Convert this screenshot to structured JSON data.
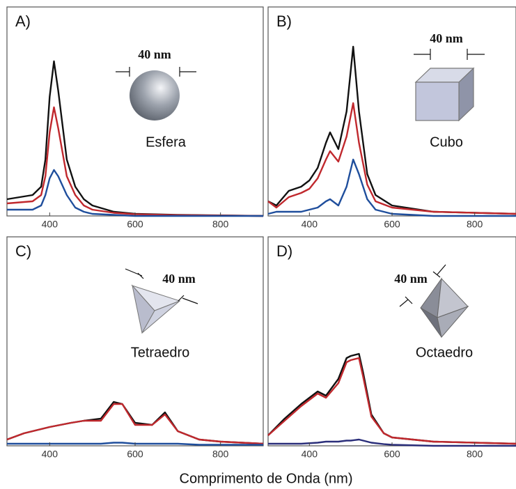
{
  "xlabel": "Comprimento de Onda (nm)",
  "chart_data": [
    {
      "type": "line",
      "title": "A)",
      "annotations": [
        "40 nm",
        "Esfera"
      ],
      "xlim": [
        300,
        900
      ],
      "xticks": [
        400,
        600,
        800
      ],
      "ylim": [
        0,
        1
      ],
      "x": [
        300,
        360,
        380,
        390,
        400,
        410,
        420,
        440,
        460,
        480,
        500,
        550,
        600,
        700,
        900
      ],
      "series": [
        {
          "color": "#111111",
          "values": [
            0.08,
            0.1,
            0.14,
            0.27,
            0.57,
            0.74,
            0.6,
            0.27,
            0.14,
            0.08,
            0.05,
            0.02,
            0.01,
            0.005,
            0
          ]
        },
        {
          "color": "#c0282d",
          "values": [
            0.06,
            0.07,
            0.1,
            0.19,
            0.4,
            0.52,
            0.42,
            0.19,
            0.1,
            0.05,
            0.03,
            0.015,
            0.008,
            0.004,
            0
          ]
        },
        {
          "color": "#1f4e9c",
          "values": [
            0.03,
            0.03,
            0.05,
            0.1,
            0.18,
            0.22,
            0.19,
            0.1,
            0.04,
            0.02,
            0.01,
            0.005,
            0,
            0,
            0
          ]
        }
      ]
    },
    {
      "type": "line",
      "title": "B)",
      "annotations": [
        "40 nm",
        "Cubo"
      ],
      "xlim": [
        300,
        900
      ],
      "xticks": [
        400,
        600,
        800
      ],
      "ylim": [
        0,
        1
      ],
      "x": [
        300,
        320,
        350,
        380,
        400,
        420,
        440,
        450,
        470,
        490,
        506,
        520,
        540,
        560,
        600,
        700,
        900
      ],
      "series": [
        {
          "color": "#111111",
          "values": [
            0.07,
            0.05,
            0.12,
            0.14,
            0.17,
            0.23,
            0.35,
            0.4,
            0.32,
            0.5,
            0.81,
            0.5,
            0.2,
            0.1,
            0.05,
            0.02,
            0.01
          ]
        },
        {
          "color": "#c0282d",
          "values": [
            0.07,
            0.04,
            0.09,
            0.11,
            0.13,
            0.18,
            0.27,
            0.31,
            0.26,
            0.38,
            0.54,
            0.35,
            0.15,
            0.07,
            0.04,
            0.02,
            0.01
          ]
        },
        {
          "color": "#1f4e9c",
          "values": [
            0.01,
            0.02,
            0.02,
            0.02,
            0.03,
            0.04,
            0.07,
            0.08,
            0.05,
            0.14,
            0.27,
            0.2,
            0.08,
            0.03,
            0.01,
            0,
            0
          ]
        }
      ]
    },
    {
      "type": "line",
      "title": "C)",
      "annotations": [
        "40 nm",
        "Tetraedro"
      ],
      "xlim": [
        300,
        900
      ],
      "xticks": [
        400,
        600,
        800
      ],
      "ylim": [
        0,
        1
      ],
      "x": [
        300,
        340,
        400,
        450,
        480,
        520,
        550,
        570,
        600,
        640,
        670,
        700,
        750,
        800,
        900
      ],
      "series": [
        {
          "color": "#111111",
          "values": [
            0.03,
            0.06,
            0.09,
            0.11,
            0.12,
            0.13,
            0.21,
            0.2,
            0.11,
            0.1,
            0.16,
            0.07,
            0.03,
            0.02,
            0.01
          ]
        },
        {
          "color": "#c0282d",
          "values": [
            0.03,
            0.06,
            0.09,
            0.11,
            0.12,
            0.12,
            0.2,
            0.2,
            0.1,
            0.1,
            0.15,
            0.07,
            0.03,
            0.02,
            0.01
          ]
        },
        {
          "color": "#1f4e9c",
          "values": [
            0.01,
            0.01,
            0.01,
            0.01,
            0.01,
            0.01,
            0.015,
            0.015,
            0.01,
            0.01,
            0.01,
            0.01,
            0.005,
            0.005,
            0.005
          ]
        }
      ]
    },
    {
      "type": "line",
      "title": "D)",
      "annotations": [
        "40 nm",
        "Octaedro"
      ],
      "xlim": [
        300,
        900
      ],
      "xticks": [
        400,
        600,
        800
      ],
      "ylim": [
        0,
        1
      ],
      "x": [
        300,
        340,
        380,
        420,
        440,
        470,
        490,
        500,
        520,
        530,
        550,
        580,
        600,
        700,
        900
      ],
      "series": [
        {
          "color": "#111111",
          "values": [
            0.05,
            0.13,
            0.2,
            0.26,
            0.24,
            0.32,
            0.42,
            0.43,
            0.44,
            0.35,
            0.15,
            0.06,
            0.04,
            0.02,
            0.01
          ]
        },
        {
          "color": "#c0282d",
          "values": [
            0.05,
            0.12,
            0.19,
            0.25,
            0.23,
            0.3,
            0.4,
            0.41,
            0.42,
            0.33,
            0.14,
            0.06,
            0.04,
            0.02,
            0.01
          ]
        },
        {
          "color": "#2a2e7a",
          "values": [
            0.01,
            0.01,
            0.01,
            0.015,
            0.02,
            0.02,
            0.025,
            0.025,
            0.03,
            0.025,
            0.015,
            0.008,
            0.005,
            0,
            0
          ]
        }
      ]
    }
  ]
}
